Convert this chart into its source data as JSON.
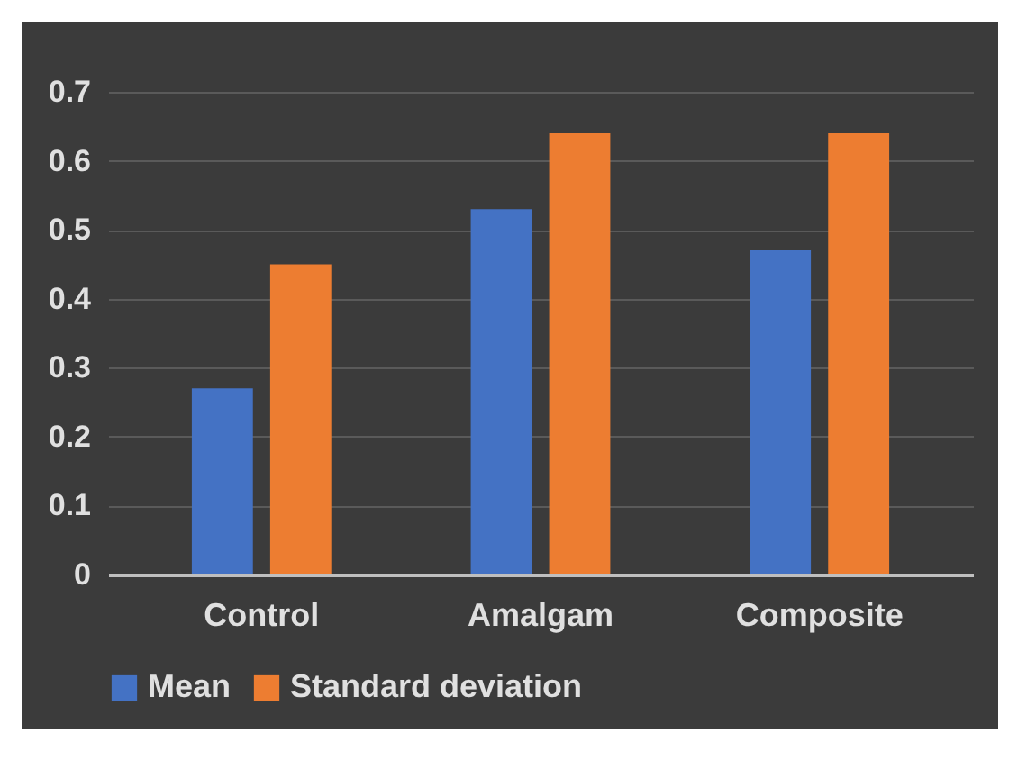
{
  "chart_data": {
    "type": "bar",
    "categories": [
      "Control",
      "Amalgam",
      "Composite"
    ],
    "series": [
      {
        "name": "Mean",
        "color": "#4472c4",
        "values": [
          0.27,
          0.53,
          0.47
        ]
      },
      {
        "name": "Standard deviation",
        "color": "#ed7d31",
        "values": [
          0.45,
          0.64,
          0.64
        ]
      }
    ],
    "ylim": [
      0,
      0.7
    ],
    "yticks": [
      0,
      0.1,
      0.2,
      0.3,
      0.4,
      0.5,
      0.6,
      0.7
    ],
    "grid": "y",
    "legend": "bottom"
  }
}
